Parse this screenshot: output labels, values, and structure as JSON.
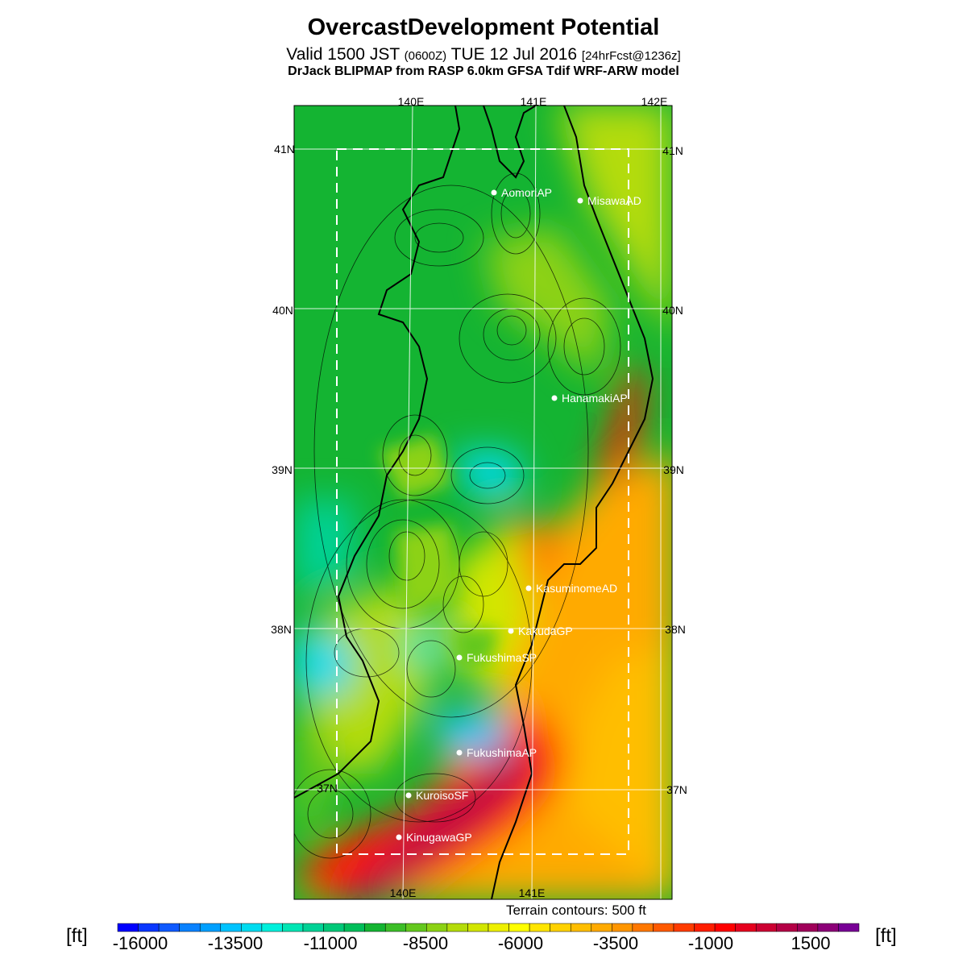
{
  "title": "OvercastDevelopment Potential",
  "subtitle": {
    "main": "Valid 1500 JST",
    "utc": "(0600Z)",
    "date": "TUE 12 Jul 2016",
    "forecast": "[24hrFcst@1236z]"
  },
  "model_line": "DrJack BLIPMAP from RASP 6.0km GFSA Tdif WRF-ARW model",
  "terrain_note": "Terrain contours: 500 ft",
  "units": {
    "left": "[ft]",
    "right": "[ft]"
  },
  "colorbar": {
    "labels": [
      "-16000",
      "-13500",
      "-11000",
      "-8500",
      "-6000",
      "-3500",
      "-1000",
      "1500"
    ],
    "colors": [
      "#0000ff",
      "#0a37ff",
      "#0f5aff",
      "#0a82ff",
      "#00a0ff",
      "#00c3ff",
      "#00dcf0",
      "#00f0dc",
      "#00e6b4",
      "#00d296",
      "#00c878",
      "#00be5a",
      "#14b432",
      "#3cbe28",
      "#64c81e",
      "#8cd214",
      "#b4dc0a",
      "#d2e600",
      "#eef000",
      "#ffff00",
      "#ffe600",
      "#ffd200",
      "#ffbe00",
      "#ffaa00",
      "#ff9600",
      "#ff7800",
      "#ff5a00",
      "#ff3c00",
      "#ff1e00",
      "#ff0000",
      "#e6001e",
      "#cc0032",
      "#b40046",
      "#a0005a",
      "#8c0078",
      "#780096"
    ]
  },
  "grid": {
    "top_lon_labels": [
      "140E",
      "141E",
      "142E"
    ],
    "bottom_lon_labels": [
      "140E",
      "141E"
    ],
    "lat_labels": [
      "41N",
      "40N",
      "39N",
      "38N",
      "37N"
    ]
  },
  "stations": [
    {
      "name": "AomoriAP"
    },
    {
      "name": "MisawaAD"
    },
    {
      "name": "HanamakiAP"
    },
    {
      "name": "KasuminomeAD"
    },
    {
      "name": "KakudaGP"
    },
    {
      "name": "FukushimaSP"
    },
    {
      "name": "FukushimaAP"
    },
    {
      "name": "KuroisoSF"
    },
    {
      "name": "KinugawaGP"
    }
  ]
}
